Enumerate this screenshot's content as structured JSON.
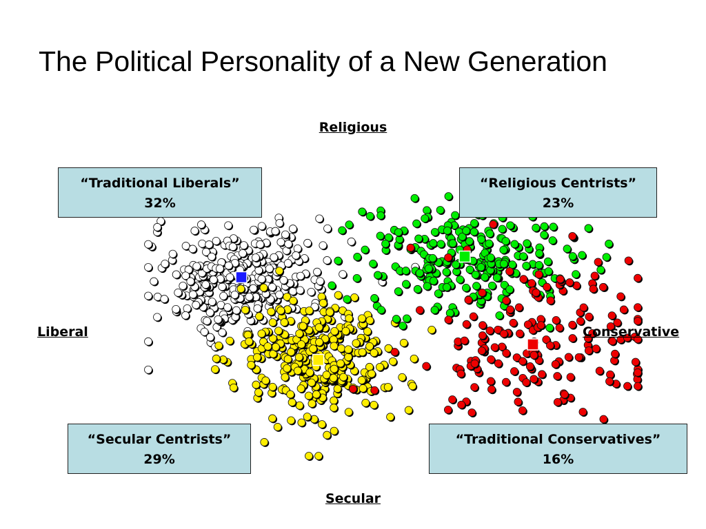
{
  "title": "The Political Personality of a New Generation",
  "axes": {
    "top": "Religious",
    "bottom": "Secular",
    "left": "Liberal",
    "right": "Conservative"
  },
  "chart_data": {
    "type": "scatter",
    "title": "The Political Personality of a New Generation",
    "axes_words": {
      "x_negative": "Liberal",
      "x_positive": "Conservative",
      "y_positive": "Religious",
      "y_negative": "Secular"
    },
    "grid": false,
    "legend": "none",
    "series": [
      {
        "name": "“Traditional Liberals”",
        "share": "32%",
        "color": "#ffffff",
        "centroid": [
          -0.9,
          0.35
        ],
        "spread": [
          0.45,
          0.32
        ],
        "count": 330
      },
      {
        "name": "“Religious Centrists”",
        "share": "23%",
        "color": "#00ee00",
        "centroid": [
          0.9,
          0.55
        ],
        "spread": [
          0.55,
          0.32
        ],
        "count": 240
      },
      {
        "name": "“Secular Centrists”",
        "share": "29%",
        "color": "#ffee00",
        "centroid": [
          -0.28,
          -0.45
        ],
        "spread": [
          0.42,
          0.38
        ],
        "count": 300
      },
      {
        "name": "“Traditional Conservatives”",
        "share": "16%",
        "color": "#ee0000",
        "centroid": [
          1.45,
          -0.3
        ],
        "spread": [
          0.62,
          0.48
        ],
        "count": 170
      }
    ],
    "centroid_colors": [
      "#1a1aff",
      "#00ee00",
      "#ffee00",
      "#ee0000"
    ]
  },
  "boxes": {
    "tl": {
      "label": "“Traditional Liberals”",
      "pct": "32%"
    },
    "tr": {
      "label": "“Religious Centrists”",
      "pct": "23%"
    },
    "bl": {
      "label": "“Secular Centrists”",
      "pct": "29%"
    },
    "br": {
      "label": "“Traditional Conservatives”",
      "pct": "16%"
    }
  }
}
